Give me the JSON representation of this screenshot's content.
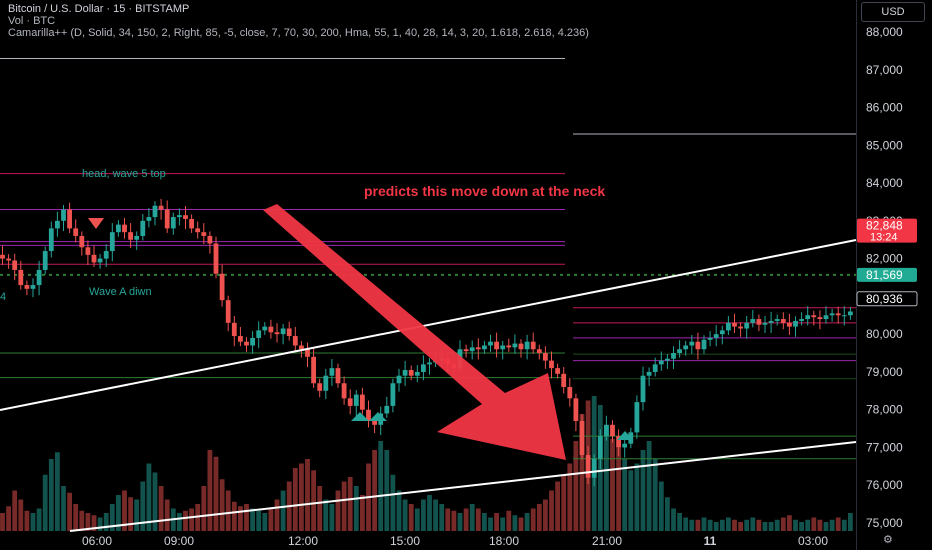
{
  "header": {
    "line1": "Bitcoin / U.S. Dollar · 15 · BITSTAMP",
    "line2": "Vol · BTC",
    "line3": "Camarilla++ (D, Solid, 34, 150, 2, Right, 85, -5, close, 7, 70, 30, 200, Hma, 55, 1, 40, 28, 14, 3, 20, 1.618, 2.618, 4.236)"
  },
  "currency_button": "USD",
  "settings_icon": "settings-icon",
  "chart_data": {
    "type": "candlestick",
    "ylim": [
      74900,
      88600
    ],
    "yticks": [
      75000,
      76000,
      77000,
      78000,
      79000,
      80000,
      81000,
      82000,
      83000,
      84000,
      85000,
      86000,
      87000,
      88000
    ],
    "ytick_labels": [
      "75,000",
      "76,000",
      "77,000",
      "78,000",
      "79,000",
      "80,000",
      "81,000",
      "82,000",
      "83,000",
      "84,000",
      "85,000",
      "86,000",
      "87,000",
      "88,000"
    ],
    "xtick_labels": [
      "06:00",
      "09:00",
      "12:00",
      "15:00",
      "18:00",
      "21:00",
      "11",
      "03:00"
    ],
    "interval_minutes": 15,
    "close_prices": [
      82200,
      82100,
      82150,
      82250,
      82100,
      82000,
      81950,
      81700,
      81300,
      81200,
      81300,
      81700,
      82200,
      82800,
      83000,
      83300,
      82800,
      82600,
      82300,
      82100,
      81900,
      82000,
      82200,
      82700,
      82900,
      82700,
      82500,
      82600,
      83000,
      83100,
      83400,
      83300,
      82800,
      83100,
      83150,
      83050,
      82800,
      82700,
      82600,
      82400,
      81600,
      80900,
      80300,
      79950,
      79800,
      79700,
      79900,
      80100,
      80200,
      80050,
      80000,
      80150,
      79950,
      79700,
      79600,
      79400,
      78700,
      78500,
      78900,
      79100,
      78700,
      78300,
      78100,
      78400,
      78000,
      77700,
      77600,
      77900,
      78100,
      78700,
      78900,
      79050,
      78900,
      79000,
      79200,
      79250,
      79300,
      79350,
      79200,
      79100,
      79600,
      79550,
      79650,
      79600,
      79700,
      79800,
      79600,
      79700,
      79650,
      79750,
      79600,
      79800,
      79600,
      79500,
      79300,
      79100,
      78950,
      78600,
      78300,
      77700,
      76800,
      76200,
      76700,
      77300,
      77600,
      77300,
      77000,
      77100,
      77400,
      78200,
      78900,
      79000,
      79200,
      79300,
      79350,
      79500,
      79600,
      79700,
      79800,
      79600,
      79850,
      79900,
      80000,
      80100,
      80300,
      80200,
      80150,
      80300,
      80400,
      80250,
      80300,
      80350,
      80400,
      80300,
      80200,
      80350,
      80400,
      80500,
      80450,
      80400,
      80500,
      80550,
      80500,
      80500,
      80600,
      80560,
      80500,
      80550,
      80620,
      80700,
      80936
    ],
    "volumes": [
      12,
      10,
      9,
      8,
      6,
      8,
      11,
      18,
      14,
      9,
      8,
      10,
      25,
      32,
      35,
      20,
      17,
      12,
      9,
      8,
      7,
      6,
      8,
      12,
      16,
      18,
      15,
      14,
      22,
      30,
      26,
      20,
      14,
      10,
      8,
      9,
      10,
      12,
      20,
      36,
      33,
      23,
      18,
      13,
      11,
      12,
      10,
      9,
      8,
      10,
      14,
      18,
      22,
      28,
      30,
      32,
      27,
      20,
      14,
      12,
      18,
      22,
      24,
      20,
      16,
      30,
      36,
      40,
      36,
      25,
      18,
      14,
      12,
      10,
      14,
      16,
      14,
      12,
      10,
      9,
      8,
      10,
      12,
      10,
      8,
      6,
      8,
      6,
      9,
      7,
      6,
      8,
      10,
      12,
      14,
      18,
      22,
      25,
      30,
      40,
      52,
      58,
      60,
      56,
      47,
      41,
      37,
      32,
      27,
      30,
      36,
      40,
      32,
      22,
      15,
      10,
      8,
      6,
      5,
      5,
      6,
      5,
      4,
      5,
      6,
      5,
      4,
      5,
      6,
      5,
      4,
      4,
      5,
      6,
      7,
      5,
      4,
      5,
      6,
      5,
      4,
      5,
      6,
      5,
      8,
      7,
      6,
      5,
      4,
      6,
      7
    ],
    "horizontal_levels": [
      {
        "price": 87300,
        "color": "#b2b5be"
      },
      {
        "price": 85300,
        "color": "#b2b5be"
      },
      {
        "price": 84250,
        "color": "#c2185b"
      },
      {
        "price": 83300,
        "color": "#9c27b0"
      },
      {
        "price": 82450,
        "color": "#9c27b0"
      },
      {
        "price": 82350,
        "color": "#9c27b0"
      },
      {
        "price": 81850,
        "color": "#c2185b"
      },
      {
        "price": 81569,
        "color": "#2e7d32",
        "dotted": true
      },
      {
        "price": 80700,
        "color": "#c2185b"
      },
      {
        "price": 80300,
        "color": "#c2185b"
      },
      {
        "price": 79900,
        "color": "#9c27b0"
      },
      {
        "price": 79500,
        "color": "#2e7d32"
      },
      {
        "price": 79300,
        "color": "#9c27b0"
      },
      {
        "price": 78850,
        "color": "#2e7d32"
      },
      {
        "price": 77300,
        "color": "#2e7d32"
      },
      {
        "price": 76700,
        "color": "#2e7d32"
      }
    ],
    "price_badges": [
      {
        "price": 82848,
        "label": "82,848",
        "sublabel": "13:24",
        "color": "#f23645"
      },
      {
        "price": 81569,
        "label": "81,569",
        "color": "#22ab94"
      },
      {
        "price": 80936,
        "label": "80,936",
        "color": "#000000"
      }
    ],
    "annotations": [
      {
        "text": "head, wave 5 top",
        "color": "#26a69a"
      },
      {
        "text": "Wave A diwn",
        "color": "#26a69a"
      },
      {
        "text": "predicts this move down at the neck",
        "color": "#f23645"
      },
      {
        "text": "4",
        "color": "#26a69a"
      }
    ],
    "up_color": "#26a69a",
    "down_color": "#ef5350"
  }
}
